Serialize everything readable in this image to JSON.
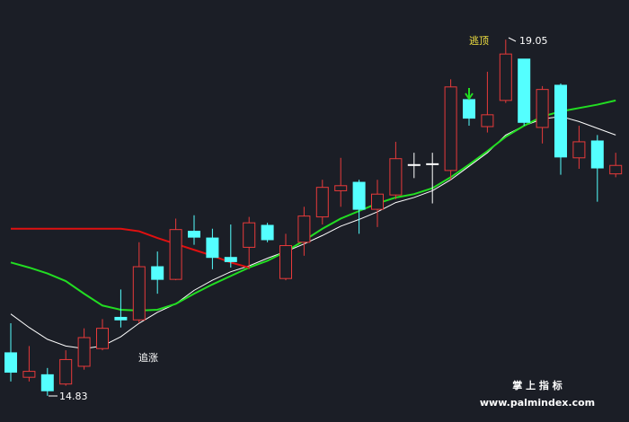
{
  "chart_data": {
    "type": "candlestick",
    "ylim": [
      14.52,
      19.52
    ],
    "up_color": "#e83a3a",
    "down_color": "#54ffff",
    "flat_color": "#ffffff",
    "open": [
      15.34,
      15.05,
      15.08,
      14.97,
      15.18,
      15.39,
      15.76,
      15.73,
      16.36,
      16.21,
      16.78,
      16.7,
      16.47,
      16.59,
      16.85,
      16.22,
      16.65,
      16.95,
      17.26,
      17.36,
      17.04,
      17.21,
      17.57,
      17.58,
      17.5,
      18.34,
      18.02,
      18.33,
      18.82,
      18.01,
      18.51,
      17.65,
      17.85,
      17.46
    ],
    "high": [
      15.69,
      15.42,
      15.16,
      15.37,
      15.63,
      15.74,
      16.09,
      16.65,
      16.54,
      16.93,
      16.97,
      16.81,
      16.86,
      16.95,
      16.88,
      16.75,
      17.07,
      17.39,
      17.65,
      17.39,
      17.39,
      17.84,
      17.71,
      17.71,
      18.58,
      18.46,
      18.67,
      19.05,
      18.82,
      18.5,
      18.53,
      18.03,
      17.92,
      17.71
    ],
    "low": [
      15.0,
      15.0,
      14.83,
      14.95,
      15.14,
      15.37,
      15.64,
      15.69,
      16.04,
      16.2,
      16.62,
      16.33,
      16.35,
      16.33,
      16.65,
      16.2,
      16.49,
      16.86,
      17.07,
      16.75,
      16.83,
      17.16,
      17.41,
      17.11,
      17.39,
      18.03,
      17.95,
      18.3,
      18.03,
      17.82,
      17.45,
      17.52,
      17.13,
      17.42
    ],
    "close": [
      15.11,
      15.12,
      14.89,
      15.26,
      15.52,
      15.63,
      15.73,
      16.36,
      16.21,
      16.8,
      16.71,
      16.47,
      16.42,
      16.88,
      16.68,
      16.61,
      16.96,
      17.3,
      17.32,
      17.04,
      17.22,
      17.64,
      17.57,
      17.58,
      18.49,
      18.12,
      18.16,
      18.88,
      18.07,
      18.46,
      17.66,
      17.84,
      17.53,
      17.56
    ],
    "lines": [
      {
        "color": "#ffffff",
        "values": [
          15.8,
          15.64,
          15.5,
          15.42,
          15.39,
          15.42,
          15.53,
          15.69,
          15.82,
          15.92,
          16.08,
          16.2,
          16.3,
          16.37,
          16.46,
          16.54,
          16.63,
          16.73,
          16.84,
          16.92,
          17.01,
          17.12,
          17.18,
          17.26,
          17.39,
          17.55,
          17.71,
          17.92,
          18.03,
          18.11,
          18.14,
          18.08,
          18.0,
          17.92
        ]
      },
      {
        "color": "#22dd22",
        "values": [
          16.41,
          16.35,
          16.28,
          16.19,
          16.04,
          15.9,
          15.85,
          15.84,
          15.85,
          15.92,
          16.04,
          16.15,
          16.25,
          16.35,
          16.43,
          16.54,
          16.67,
          16.81,
          16.93,
          17.02,
          17.11,
          17.18,
          17.22,
          17.29,
          17.42,
          17.57,
          17.73,
          17.9,
          18.03,
          18.14,
          18.2,
          18.24,
          18.28,
          18.33
        ]
      },
      {
        "color": "#e01010",
        "values": [
          16.81,
          16.81,
          16.81,
          16.81,
          16.81,
          16.81,
          16.81,
          16.78,
          16.7,
          16.63,
          16.56,
          16.49,
          16.41,
          16.35,
          null,
          null,
          null,
          null,
          null,
          null,
          null,
          null,
          null,
          null,
          null,
          null,
          null,
          null,
          null,
          null,
          null,
          null,
          null,
          null
        ]
      }
    ],
    "annotations": [
      "逃顶",
      "追涨"
    ]
  },
  "watermark": {
    "title": "掌 上 指 标",
    "url": "www.palmindex.com"
  }
}
